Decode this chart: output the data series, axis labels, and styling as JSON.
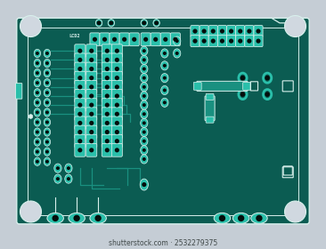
{
  "bg_color": "#c5cdd5",
  "board_color": "#0b5c52",
  "trace_color": "#1a9080",
  "pad_color": "#2abfaa",
  "pad_hole_color": "#040e0c",
  "silk_color": "#d8f0ec",
  "white_circle_color": "#d0d8e0",
  "watermark": "shutterstock.com · 2532279375"
}
